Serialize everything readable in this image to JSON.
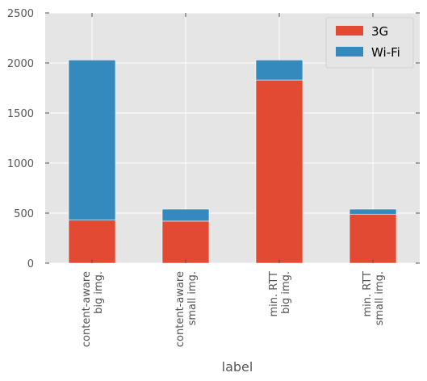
{
  "chart_data": {
    "type": "bar",
    "stacked": true,
    "categories": [
      [
        "content-aware",
        "big img."
      ],
      [
        "content-aware",
        "small img."
      ],
      [
        "min. RTT",
        "big img."
      ],
      [
        "min. RTT",
        "small img."
      ]
    ],
    "series": [
      {
        "name": "3G",
        "values": [
          430,
          420,
          1830,
          490
        ],
        "color": "#E24A33"
      },
      {
        "name": "Wi-Fi",
        "values": [
          1600,
          120,
          200,
          50
        ],
        "color": "#348ABD"
      }
    ],
    "xlabel": "label",
    "ylabel": "",
    "ylim": [
      0,
      2500
    ],
    "yticks": [
      0,
      500,
      1000,
      1500,
      2000,
      2500
    ],
    "grid": true,
    "legend_position": "top-right",
    "style": "ggplot"
  }
}
